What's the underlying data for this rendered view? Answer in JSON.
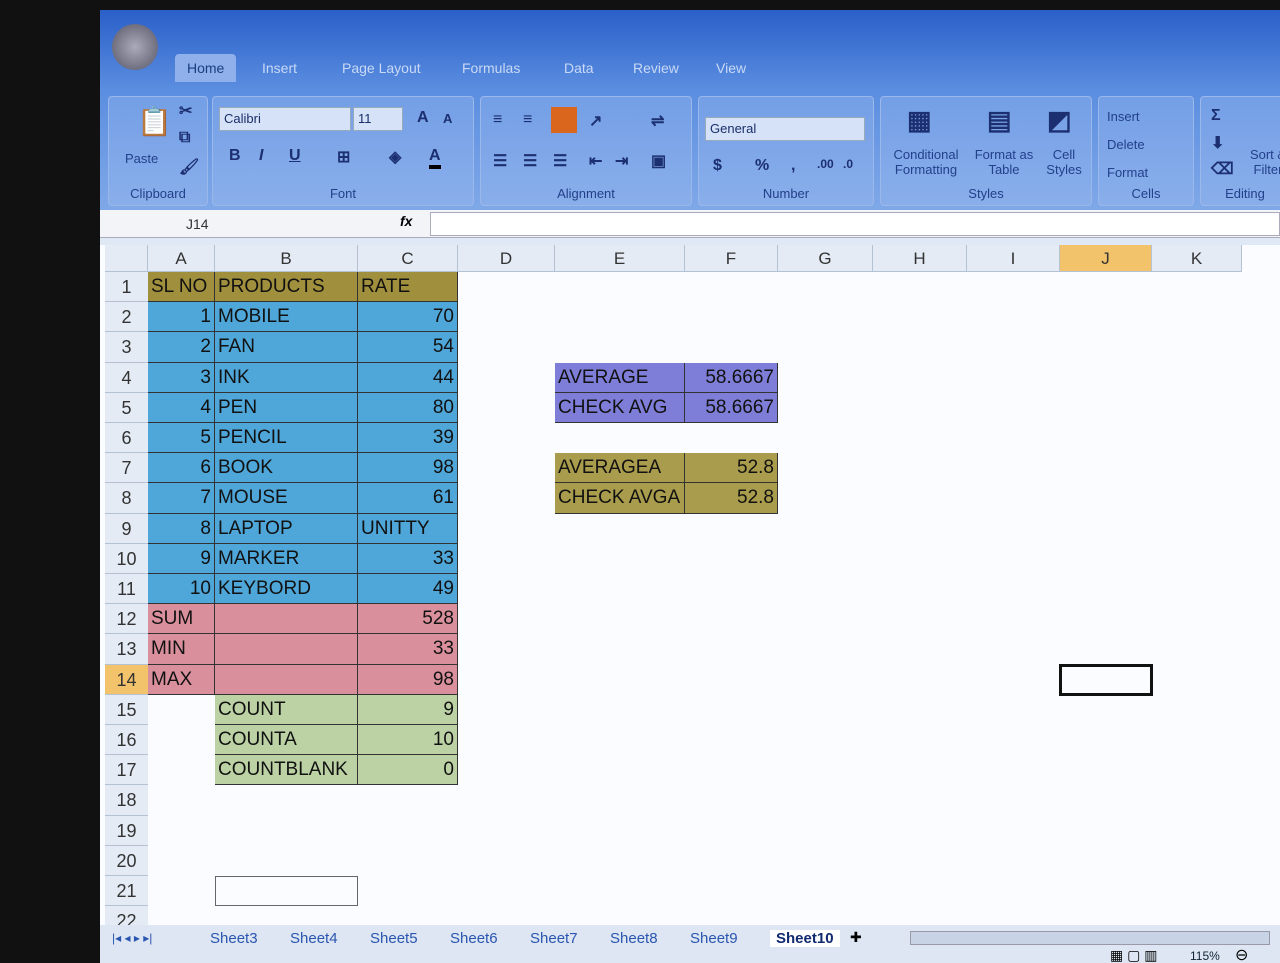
{
  "ribbon": {
    "tabs": [
      "Home",
      "Insert",
      "Page Layout",
      "Formulas",
      "Data",
      "Review",
      "View"
    ],
    "clipboard": {
      "paste": "Paste",
      "label": "Clipboard"
    },
    "font": {
      "name": "Calibri",
      "size": "11",
      "label": "Font",
      "bold": "B",
      "italic": "I",
      "underline": "U"
    },
    "alignment": {
      "label": "Alignment"
    },
    "number": {
      "format": "General",
      "label": "Number",
      "currency": "$",
      "percent": "%",
      "comma": ","
    },
    "styles": {
      "conditional": "Conditional Formatting",
      "table": "Format as Table",
      "cell": "Cell Styles",
      "label": "Styles"
    },
    "cells": {
      "insert": "Insert",
      "delete": "Delete",
      "format": "Format",
      "label": "Cells"
    },
    "editing": {
      "sort": "Sort & Filter",
      "label": "Editing",
      "sum": "Σ"
    }
  },
  "formula_bar": {
    "name_box": "J14",
    "fx": "fx",
    "value": ""
  },
  "columns": [
    "A",
    "B",
    "C",
    "D",
    "E",
    "F",
    "G",
    "H",
    "I",
    "J",
    "K"
  ],
  "active_cell": "J14",
  "colors": {
    "blue": "#4ea6d9",
    "header": "#a08f3c",
    "pink": "#d9909c",
    "green": "#bcd2a4",
    "purple": "#7e7ed8",
    "olive": "#a99c4c"
  },
  "cells": [
    {
      "r": 1,
      "c": "A",
      "v": "SL NO",
      "fill": "header"
    },
    {
      "r": 1,
      "c": "B",
      "v": "PRODUCTS",
      "fill": "header"
    },
    {
      "r": 1,
      "c": "C",
      "v": "RATE",
      "fill": "header"
    },
    {
      "r": 2,
      "c": "A",
      "v": "1",
      "n": 1,
      "fill": "blue"
    },
    {
      "r": 2,
      "c": "B",
      "v": "MOBILE",
      "fill": "blue"
    },
    {
      "r": 2,
      "c": "C",
      "v": "70",
      "n": 1,
      "fill": "blue"
    },
    {
      "r": 3,
      "c": "A",
      "v": "2",
      "n": 1,
      "fill": "blue"
    },
    {
      "r": 3,
      "c": "B",
      "v": "FAN",
      "fill": "blue"
    },
    {
      "r": 3,
      "c": "C",
      "v": "54",
      "n": 1,
      "fill": "blue"
    },
    {
      "r": 4,
      "c": "A",
      "v": "3",
      "n": 1,
      "fill": "blue"
    },
    {
      "r": 4,
      "c": "B",
      "v": "INK",
      "fill": "blue"
    },
    {
      "r": 4,
      "c": "C",
      "v": "44",
      "n": 1,
      "fill": "blue"
    },
    {
      "r": 5,
      "c": "A",
      "v": "4",
      "n": 1,
      "fill": "blue"
    },
    {
      "r": 5,
      "c": "B",
      "v": "PEN",
      "fill": "blue"
    },
    {
      "r": 5,
      "c": "C",
      "v": "80",
      "n": 1,
      "fill": "blue"
    },
    {
      "r": 6,
      "c": "A",
      "v": "5",
      "n": 1,
      "fill": "blue"
    },
    {
      "r": 6,
      "c": "B",
      "v": "PENCIL",
      "fill": "blue"
    },
    {
      "r": 6,
      "c": "C",
      "v": "39",
      "n": 1,
      "fill": "blue"
    },
    {
      "r": 7,
      "c": "A",
      "v": "6",
      "n": 1,
      "fill": "blue"
    },
    {
      "r": 7,
      "c": "B",
      "v": "BOOK",
      "fill": "blue"
    },
    {
      "r": 7,
      "c": "C",
      "v": "98",
      "n": 1,
      "fill": "blue"
    },
    {
      "r": 8,
      "c": "A",
      "v": "7",
      "n": 1,
      "fill": "blue"
    },
    {
      "r": 8,
      "c": "B",
      "v": "MOUSE",
      "fill": "blue"
    },
    {
      "r": 8,
      "c": "C",
      "v": "61",
      "n": 1,
      "fill": "blue"
    },
    {
      "r": 9,
      "c": "A",
      "v": "8",
      "n": 1,
      "fill": "blue"
    },
    {
      "r": 9,
      "c": "B",
      "v": "LAPTOP",
      "fill": "blue"
    },
    {
      "r": 9,
      "c": "C",
      "v": "UNITTY",
      "fill": "blue"
    },
    {
      "r": 10,
      "c": "A",
      "v": "9",
      "n": 1,
      "fill": "blue"
    },
    {
      "r": 10,
      "c": "B",
      "v": "MARKER",
      "fill": "blue"
    },
    {
      "r": 10,
      "c": "C",
      "v": "33",
      "n": 1,
      "fill": "blue"
    },
    {
      "r": 11,
      "c": "A",
      "v": "10",
      "n": 1,
      "fill": "blue"
    },
    {
      "r": 11,
      "c": "B",
      "v": "KEYBORD",
      "fill": "blue"
    },
    {
      "r": 11,
      "c": "C",
      "v": "49",
      "n": 1,
      "fill": "blue"
    },
    {
      "r": 12,
      "c": "A",
      "v": "SUM",
      "fill": "pink"
    },
    {
      "r": 12,
      "c": "B",
      "v": "",
      "fill": "pink"
    },
    {
      "r": 12,
      "c": "C",
      "v": "528",
      "n": 1,
      "fill": "pink"
    },
    {
      "r": 13,
      "c": "A",
      "v": "MIN",
      "fill": "pink"
    },
    {
      "r": 13,
      "c": "B",
      "v": "",
      "fill": "pink"
    },
    {
      "r": 13,
      "c": "C",
      "v": "33",
      "n": 1,
      "fill": "pink"
    },
    {
      "r": 14,
      "c": "A",
      "v": "MAX",
      "fill": "pink"
    },
    {
      "r": 14,
      "c": "B",
      "v": "",
      "fill": "pink"
    },
    {
      "r": 14,
      "c": "C",
      "v": "98",
      "n": 1,
      "fill": "pink"
    },
    {
      "r": 15,
      "c": "B",
      "v": "COUNT",
      "fill": "green"
    },
    {
      "r": 15,
      "c": "C",
      "v": "9",
      "n": 1,
      "fill": "green"
    },
    {
      "r": 16,
      "c": "B",
      "v": "COUNTA",
      "fill": "green"
    },
    {
      "r": 16,
      "c": "C",
      "v": "10",
      "n": 1,
      "fill": "green"
    },
    {
      "r": 17,
      "c": "B",
      "v": "COUNTBLANK",
      "fill": "green"
    },
    {
      "r": 17,
      "c": "C",
      "v": "0",
      "n": 1,
      "fill": "green"
    },
    {
      "r": 4,
      "c": "E",
      "v": "AVERAGE",
      "fill": "purple"
    },
    {
      "r": 4,
      "c": "F",
      "v": "58.6667",
      "n": 1,
      "fill": "purple"
    },
    {
      "r": 5,
      "c": "E",
      "v": "CHECK AVG",
      "fill": "purple"
    },
    {
      "r": 5,
      "c": "F",
      "v": "58.6667",
      "n": 1,
      "fill": "purple"
    },
    {
      "r": 7,
      "c": "E",
      "v": "AVERAGEA",
      "fill": "olive"
    },
    {
      "r": 7,
      "c": "F",
      "v": "52.8",
      "n": 1,
      "fill": "olive"
    },
    {
      "r": 8,
      "c": "E",
      "v": "CHECK AVGA",
      "fill": "olive"
    },
    {
      "r": 8,
      "c": "F",
      "v": "52.8",
      "n": 1,
      "fill": "olive"
    }
  ],
  "sheet_tabs": [
    "Sheet3",
    "Sheet4",
    "Sheet5",
    "Sheet6",
    "Sheet7",
    "Sheet8",
    "Sheet9",
    "Sheet10"
  ],
  "active_sheet": "Sheet10",
  "status": {
    "zoom": "115%"
  }
}
